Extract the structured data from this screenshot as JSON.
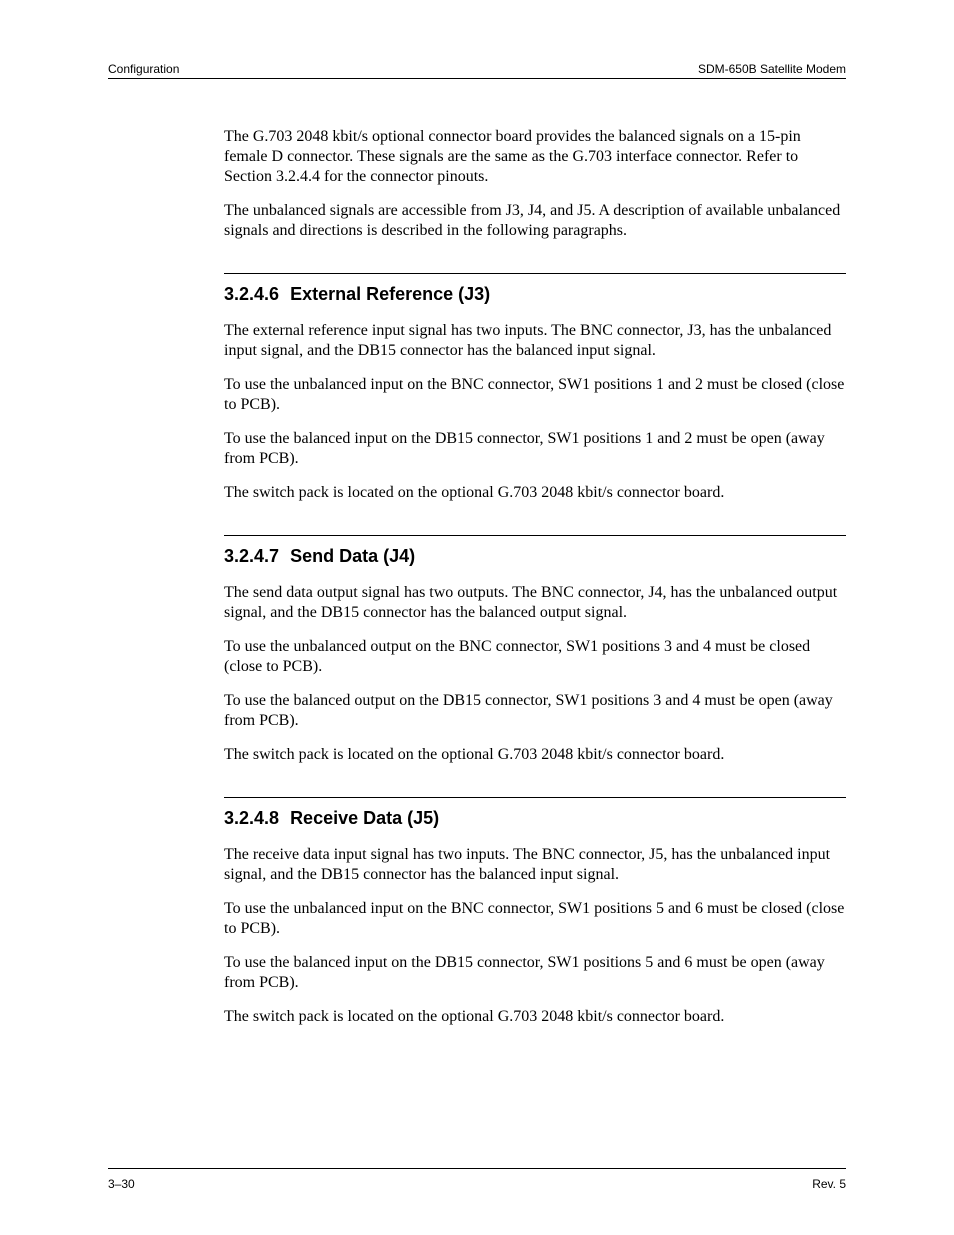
{
  "header": {
    "left": "Configuration",
    "right": "SDM-650B Satellite Modem"
  },
  "intro": {
    "p1": "The G.703 2048 kbit/s optional connector board provides the balanced signals on a 15-pin female D connector. These signals are the same as the G.703 interface connector. Refer to Section 3.2.4.4 for the connector pinouts.",
    "p2": "The unbalanced signals are accessible from J3, J4, and J5. A description of available unbalanced signals and directions is described in the following paragraphs."
  },
  "sections": {
    "s1": {
      "num": "3.2.4.6",
      "title": "External Reference (J3)",
      "p1": "The external reference input signal has two inputs. The BNC connector, J3, has the unbalanced input signal, and the DB15 connector has the balanced input signal.",
      "p2": "To use the unbalanced input on the BNC connector, SW1 positions 1 and 2 must be closed (close to PCB).",
      "p3": "To use the balanced input on the DB15 connector, SW1 positions 1 and 2 must be open (away from PCB).",
      "p4": "The switch pack is located on the optional G.703 2048 kbit/s connector board."
    },
    "s2": {
      "num": "3.2.4.7",
      "title": "Send Data (J4)",
      "p1": "The send data output signal has two outputs. The BNC connector, J4, has the unbalanced output signal, and the DB15 connector has the balanced output signal.",
      "p2": "To use the unbalanced output on the BNC connector, SW1 positions 3 and 4 must be closed (close to PCB).",
      "p3": "To use the balanced output on the DB15 connector, SW1 positions 3 and 4 must be open (away from PCB).",
      "p4": "The switch pack is located on the optional G.703 2048 kbit/s connector board."
    },
    "s3": {
      "num": "3.2.4.8",
      "title": "Receive Data (J5)",
      "p1": "The receive data input signal has two inputs. The BNC connector, J5, has the unbalanced input signal, and the DB15 connector has the balanced input signal.",
      "p2": "To use the unbalanced input on the BNC connector, SW1 positions 5 and 6 must be closed (close to PCB).",
      "p3": "To use the balanced input on the DB15 connector, SW1 positions 5 and 6 must be open (away from PCB).",
      "p4": "The switch pack is located on the optional G.703 2048 kbit/s connector board."
    }
  },
  "footer": {
    "left": "3–30",
    "right": "Rev. 5"
  }
}
